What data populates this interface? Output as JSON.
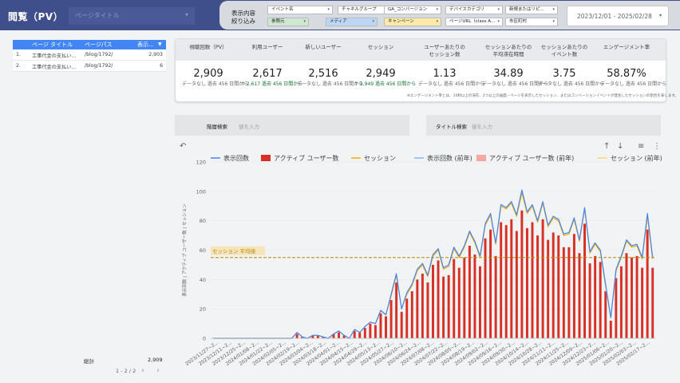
{
  "header": {
    "title": "閲覧（PV）",
    "title_select_placeholder": "ページタイトル",
    "filter_label_1": "表示内容",
    "filter_label_2": "絞り込み",
    "filters": [
      {
        "label": "イベント名",
        "color": "#ffffff"
      },
      {
        "label": "チャネルグループ",
        "color": "#ffffff"
      },
      {
        "label": "GA_コンバージョン",
        "color": "#ffffff"
      },
      {
        "label": "デバイスカテゴリ",
        "color": "#ffffff"
      },
      {
        "label": "新規またはリピ...",
        "color": "#ffffff"
      },
      {
        "label": "参照元",
        "color": "#cfe8cf"
      },
      {
        "label": "メディア",
        "color": "#bcd6f5"
      },
      {
        "label": "キャンペーン",
        "color": "#fde9a8"
      },
      {
        "label": "ページURL（class A...",
        "color": "#ffffff"
      },
      {
        "label": "市区町村",
        "color": "#ffffff"
      }
    ],
    "date_range": "2023/12/01 - 2025/02/28"
  },
  "table": {
    "columns": [
      "ページ タイトル",
      "ページパス",
      "表示..."
    ],
    "rows": [
      {
        "index": "1.",
        "title": "工事代金の支払い...",
        "path": "/blog/1792/",
        "views": "2,903"
      },
      {
        "index": "2.",
        "title": "工事代金の支払い...",
        "path": "/blog/1792/",
        "views": "6"
      }
    ],
    "total_label": "総計",
    "total_value": "2,909",
    "pagination": "1 - 2 / 2"
  },
  "scorecard": {
    "metrics": [
      {
        "label": "視聴回数（PV）",
        "value": "2,909",
        "compare": "データなし 過去 456 日間から",
        "arrow": ""
      },
      {
        "label": "利用ユーザー",
        "value": "2,617",
        "compare": "↑ 2,617 過去 456 日間から",
        "arrow": "up"
      },
      {
        "label": "新しいユーザー",
        "value": "2,516",
        "compare": "データなし 過去 456 日間から",
        "arrow": ""
      },
      {
        "label": "セッション",
        "value": "2,949",
        "compare": "↑ 2,949 過去 456 日間から",
        "arrow": "up"
      },
      {
        "label": "ユーザーあたりの\nセッション数",
        "value": "1.13",
        "compare": "データなし 過去 456 日間から",
        "arrow": ""
      },
      {
        "label": "セッションあたりの\n平均滞在時間",
        "value": "34.89",
        "compare": "データなし 過去 456 日間から",
        "arrow": ""
      },
      {
        "label": "セッションあたりの\nイベント数",
        "value": "3.75",
        "compare": "データなし 過去 456 日間から",
        "arrow": ""
      },
      {
        "label": "エンゲージメント率",
        "value": "58.87%",
        "compare": "データなし 過去 456 日間から",
        "arrow": ""
      }
    ],
    "note": "※エンゲージメント率とは、10秒以上の滞在、2つ以上の画面・ページを表示したセッション、またはコンバージョンイベントが発生したセッションの割合を表します。"
  },
  "search": {
    "hierarchy_label": "階層検索",
    "hierarchy_placeholder": "値を入力",
    "title_label": "タイトル検索",
    "title_placeholder": "値を入力"
  },
  "colors": {
    "header_bg": "#3f4f8c",
    "table_header": "#4285f4",
    "series_views": "#4285f4",
    "series_users": "#d93025",
    "series_sessions": "#f9ab00"
  },
  "chart_data": {
    "type": "bar",
    "title": "",
    "xlabel": "",
    "ylabel": "表示回数 | アクティブ ユーザー数 | セッション",
    "ylim": [
      0,
      120
    ],
    "yticks": [
      0,
      20,
      40,
      60,
      80,
      100,
      120
    ],
    "legend_position": "top",
    "grid": true,
    "reference_line": {
      "label": "セッション 平均値",
      "value": 55
    },
    "x_tick_labels": [
      "2023/11/27~2...",
      "2023/12/11~2...",
      "2023/12/25~2...",
      "2024/01/08~2...",
      "2024/01/22~2...",
      "2024/02/05~2...",
      "2024/02/19~2...",
      "2024/03/04~2...",
      "2024/03/18~2...",
      "2024/04/01~2...",
      "2024/04/15~2...",
      "2024/04/29~2...",
      "2024/05/13~2...",
      "2024/05/27~2...",
      "2024/06/10~2...",
      "2024/06/24~2...",
      "2024/07/08~2...",
      "2024/07/22~2...",
      "2024/08/05~2...",
      "2024/08/19~2...",
      "2024/09/02~2...",
      "2024/09/16~2...",
      "2024/09/30~2...",
      "2024/10/14~2...",
      "2024/10/28~2...",
      "2024/11/11~2...",
      "2024/11/25~2...",
      "2024/12/09~2...",
      "2024/12/23~2...",
      "2025/01/06~2...",
      "2025/01/20~2...",
      "2025/02/03~2...",
      "2025/02/17~2..."
    ],
    "series": [
      {
        "name": "表示回数",
        "kind": "line",
        "values": [
          0,
          0,
          0,
          0,
          0,
          0,
          0,
          0,
          0,
          0,
          0,
          0,
          0,
          0,
          0,
          0,
          4,
          1,
          0,
          2,
          2,
          1,
          0,
          3,
          5,
          2,
          0,
          6,
          4,
          8,
          11,
          10,
          19,
          16,
          30,
          44,
          20,
          31,
          37,
          47,
          51,
          43,
          57,
          61,
          48,
          50,
          62,
          56,
          63,
          73,
          66,
          56,
          78,
          85,
          65,
          91,
          89,
          93,
          84,
          101,
          86,
          91,
          80,
          93,
          77,
          83,
          81,
          71,
          72,
          82,
          67,
          89,
          59,
          65,
          60,
          37,
          14,
          47,
          56,
          67,
          63,
          64,
          55,
          85,
          55
        ]
      },
      {
        "name": "アクティブ ユーザー数",
        "kind": "bar",
        "values": [
          0,
          0,
          0,
          0,
          0,
          0,
          0,
          0,
          0,
          0,
          0,
          0,
          0,
          0,
          0,
          0,
          3,
          1,
          0,
          2,
          2,
          1,
          0,
          3,
          4,
          2,
          0,
          5,
          4,
          7,
          10,
          9,
          17,
          15,
          26,
          38,
          18,
          27,
          32,
          40,
          44,
          38,
          50,
          53,
          42,
          43,
          54,
          48,
          55,
          63,
          57,
          49,
          68,
          74,
          56,
          79,
          77,
          81,
          73,
          87,
          75,
          79,
          70,
          81,
          67,
          72,
          70,
          62,
          62,
          71,
          58,
          78,
          51,
          56,
          52,
          32,
          12,
          41,
          49,
          58,
          55,
          56,
          48,
          74,
          48
        ]
      },
      {
        "name": "セッション",
        "kind": "line",
        "values": [
          0,
          0,
          0,
          0,
          0,
          0,
          0,
          0,
          0,
          0,
          0,
          0,
          0,
          0,
          0,
          0,
          4,
          1,
          0,
          2,
          2,
          1,
          0,
          3,
          5,
          2,
          0,
          6,
          4,
          8,
          11,
          10,
          19,
          16,
          29,
          43,
          20,
          30,
          36,
          46,
          50,
          42,
          56,
          60,
          47,
          49,
          61,
          55,
          62,
          72,
          65,
          55,
          77,
          84,
          64,
          90,
          88,
          92,
          83,
          99,
          85,
          90,
          79,
          92,
          76,
          82,
          80,
          70,
          71,
          81,
          66,
          88,
          58,
          64,
          59,
          36,
          14,
          46,
          55,
          66,
          62,
          63,
          54,
          83,
          54
        ]
      },
      {
        "name": "表示回数 (前年)",
        "kind": "line",
        "values": []
      },
      {
        "name": "アクティブ ユーザー数 (前年)",
        "kind": "bar",
        "values": []
      },
      {
        "name": "セッション (前年)",
        "kind": "line",
        "values": []
      }
    ]
  }
}
